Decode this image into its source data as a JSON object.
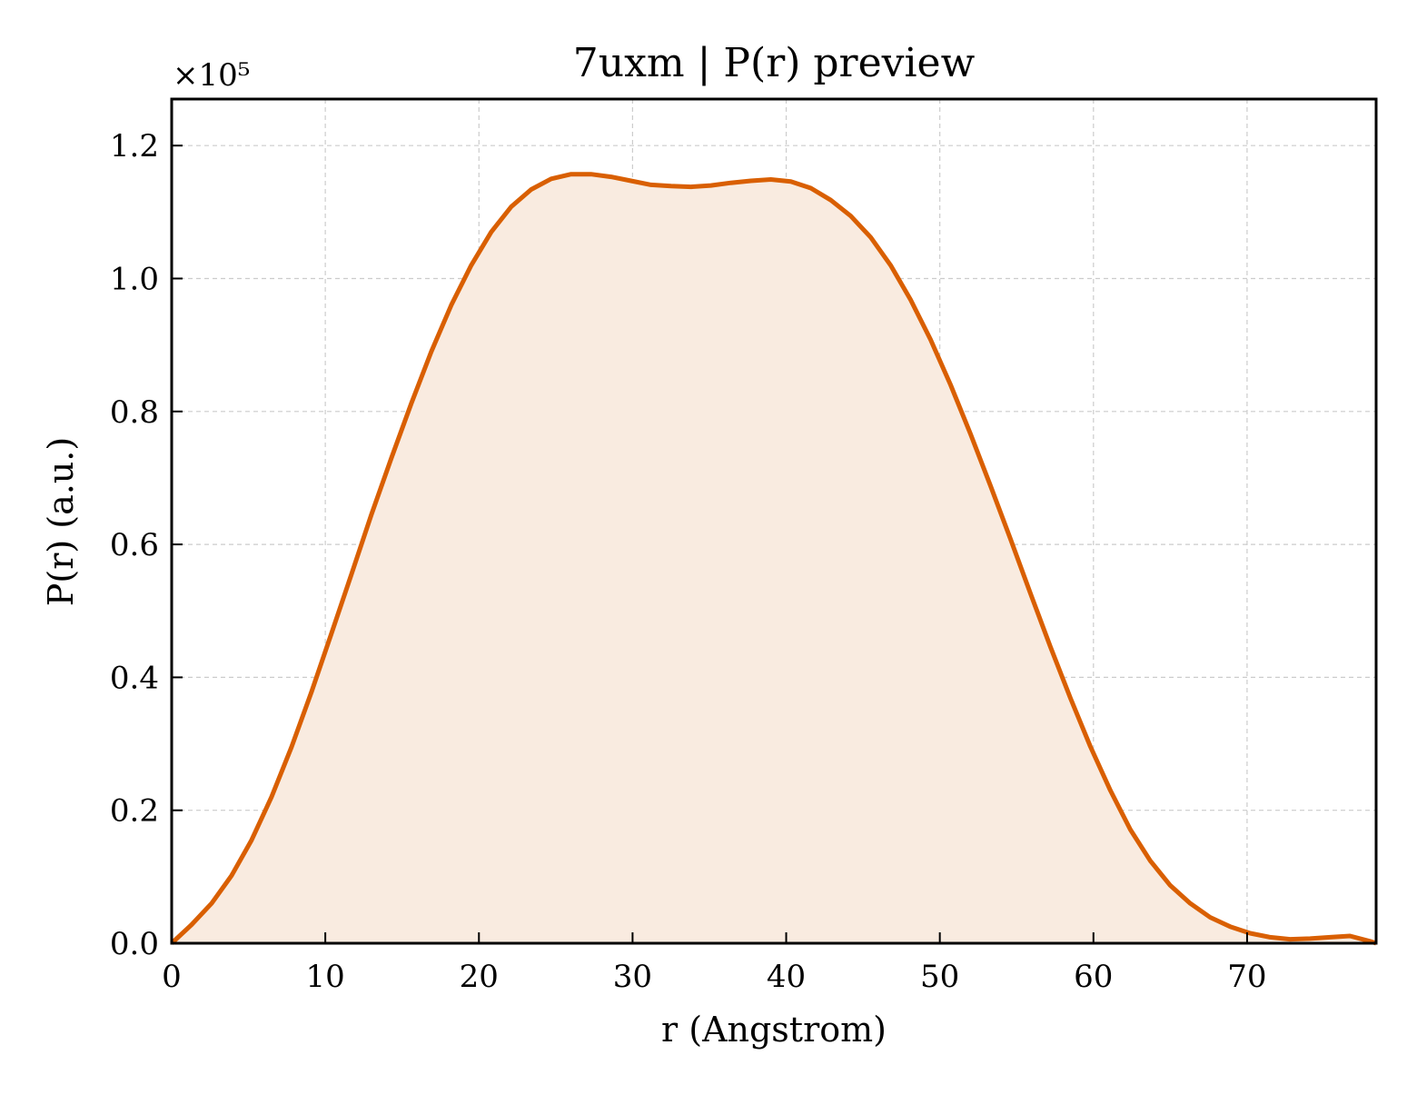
{
  "chart_data": {
    "type": "area",
    "title": "7uxm | P(r) preview",
    "xlabel": "r (Angstrom)",
    "ylabel": "P(r) (a.u.)",
    "y_multiplier": "×10⁵",
    "xlim": [
      0,
      78.4
    ],
    "ylim": [
      0,
      1.27
    ],
    "xticks": [
      0,
      10,
      20,
      30,
      40,
      50,
      60,
      70
    ],
    "xtick_labels": [
      "0",
      "10",
      "20",
      "30",
      "40",
      "50",
      "60",
      "70"
    ],
    "yticks": [
      0,
      0.2,
      0.4,
      0.6,
      0.8,
      1.0,
      1.2
    ],
    "ytick_labels": [
      "0.0",
      "0.2",
      "0.4",
      "0.6",
      "0.8",
      "1.0",
      "1.2"
    ],
    "grid": true,
    "line_color": "#d95f02",
    "fill_color": "#f9ebe0",
    "series": [
      {
        "x": [
          0,
          1.3,
          2.6,
          3.9,
          5.2,
          6.5,
          7.8,
          9.1,
          10.4,
          11.7,
          13.0,
          14.3,
          15.6,
          16.9,
          18.2,
          19.5,
          20.8,
          22.1,
          23.4,
          24.7,
          26.0,
          27.3,
          28.6,
          29.9,
          31.2,
          32.5,
          33.8,
          35.1,
          36.4,
          37.7,
          39.0,
          40.3,
          41.6,
          42.9,
          44.2,
          45.5,
          46.8,
          48.1,
          49.4,
          50.7,
          52.0,
          53.3,
          54.6,
          55.9,
          57.2,
          58.5,
          59.8,
          61.1,
          62.4,
          63.7,
          65.0,
          66.3,
          67.6,
          68.9,
          70.2,
          71.5,
          72.8,
          74.1,
          75.4,
          76.7,
          78.0,
          78.4
        ],
        "y": [
          0.0,
          0.028,
          0.06,
          0.102,
          0.155,
          0.22,
          0.295,
          0.378,
          0.466,
          0.555,
          0.645,
          0.73,
          0.812,
          0.89,
          0.96,
          1.02,
          1.07,
          1.108,
          1.134,
          1.15,
          1.157,
          1.157,
          1.153,
          1.147,
          1.141,
          1.139,
          1.138,
          1.14,
          1.144,
          1.147,
          1.149,
          1.146,
          1.136,
          1.118,
          1.094,
          1.062,
          1.02,
          0.968,
          0.908,
          0.84,
          0.766,
          0.688,
          0.608,
          0.526,
          0.446,
          0.369,
          0.296,
          0.23,
          0.171,
          0.124,
          0.087,
          0.06,
          0.039,
          0.025,
          0.015,
          0.009,
          0.006,
          0.007,
          0.009,
          0.011,
          0.003,
          0.0
        ]
      }
    ]
  }
}
